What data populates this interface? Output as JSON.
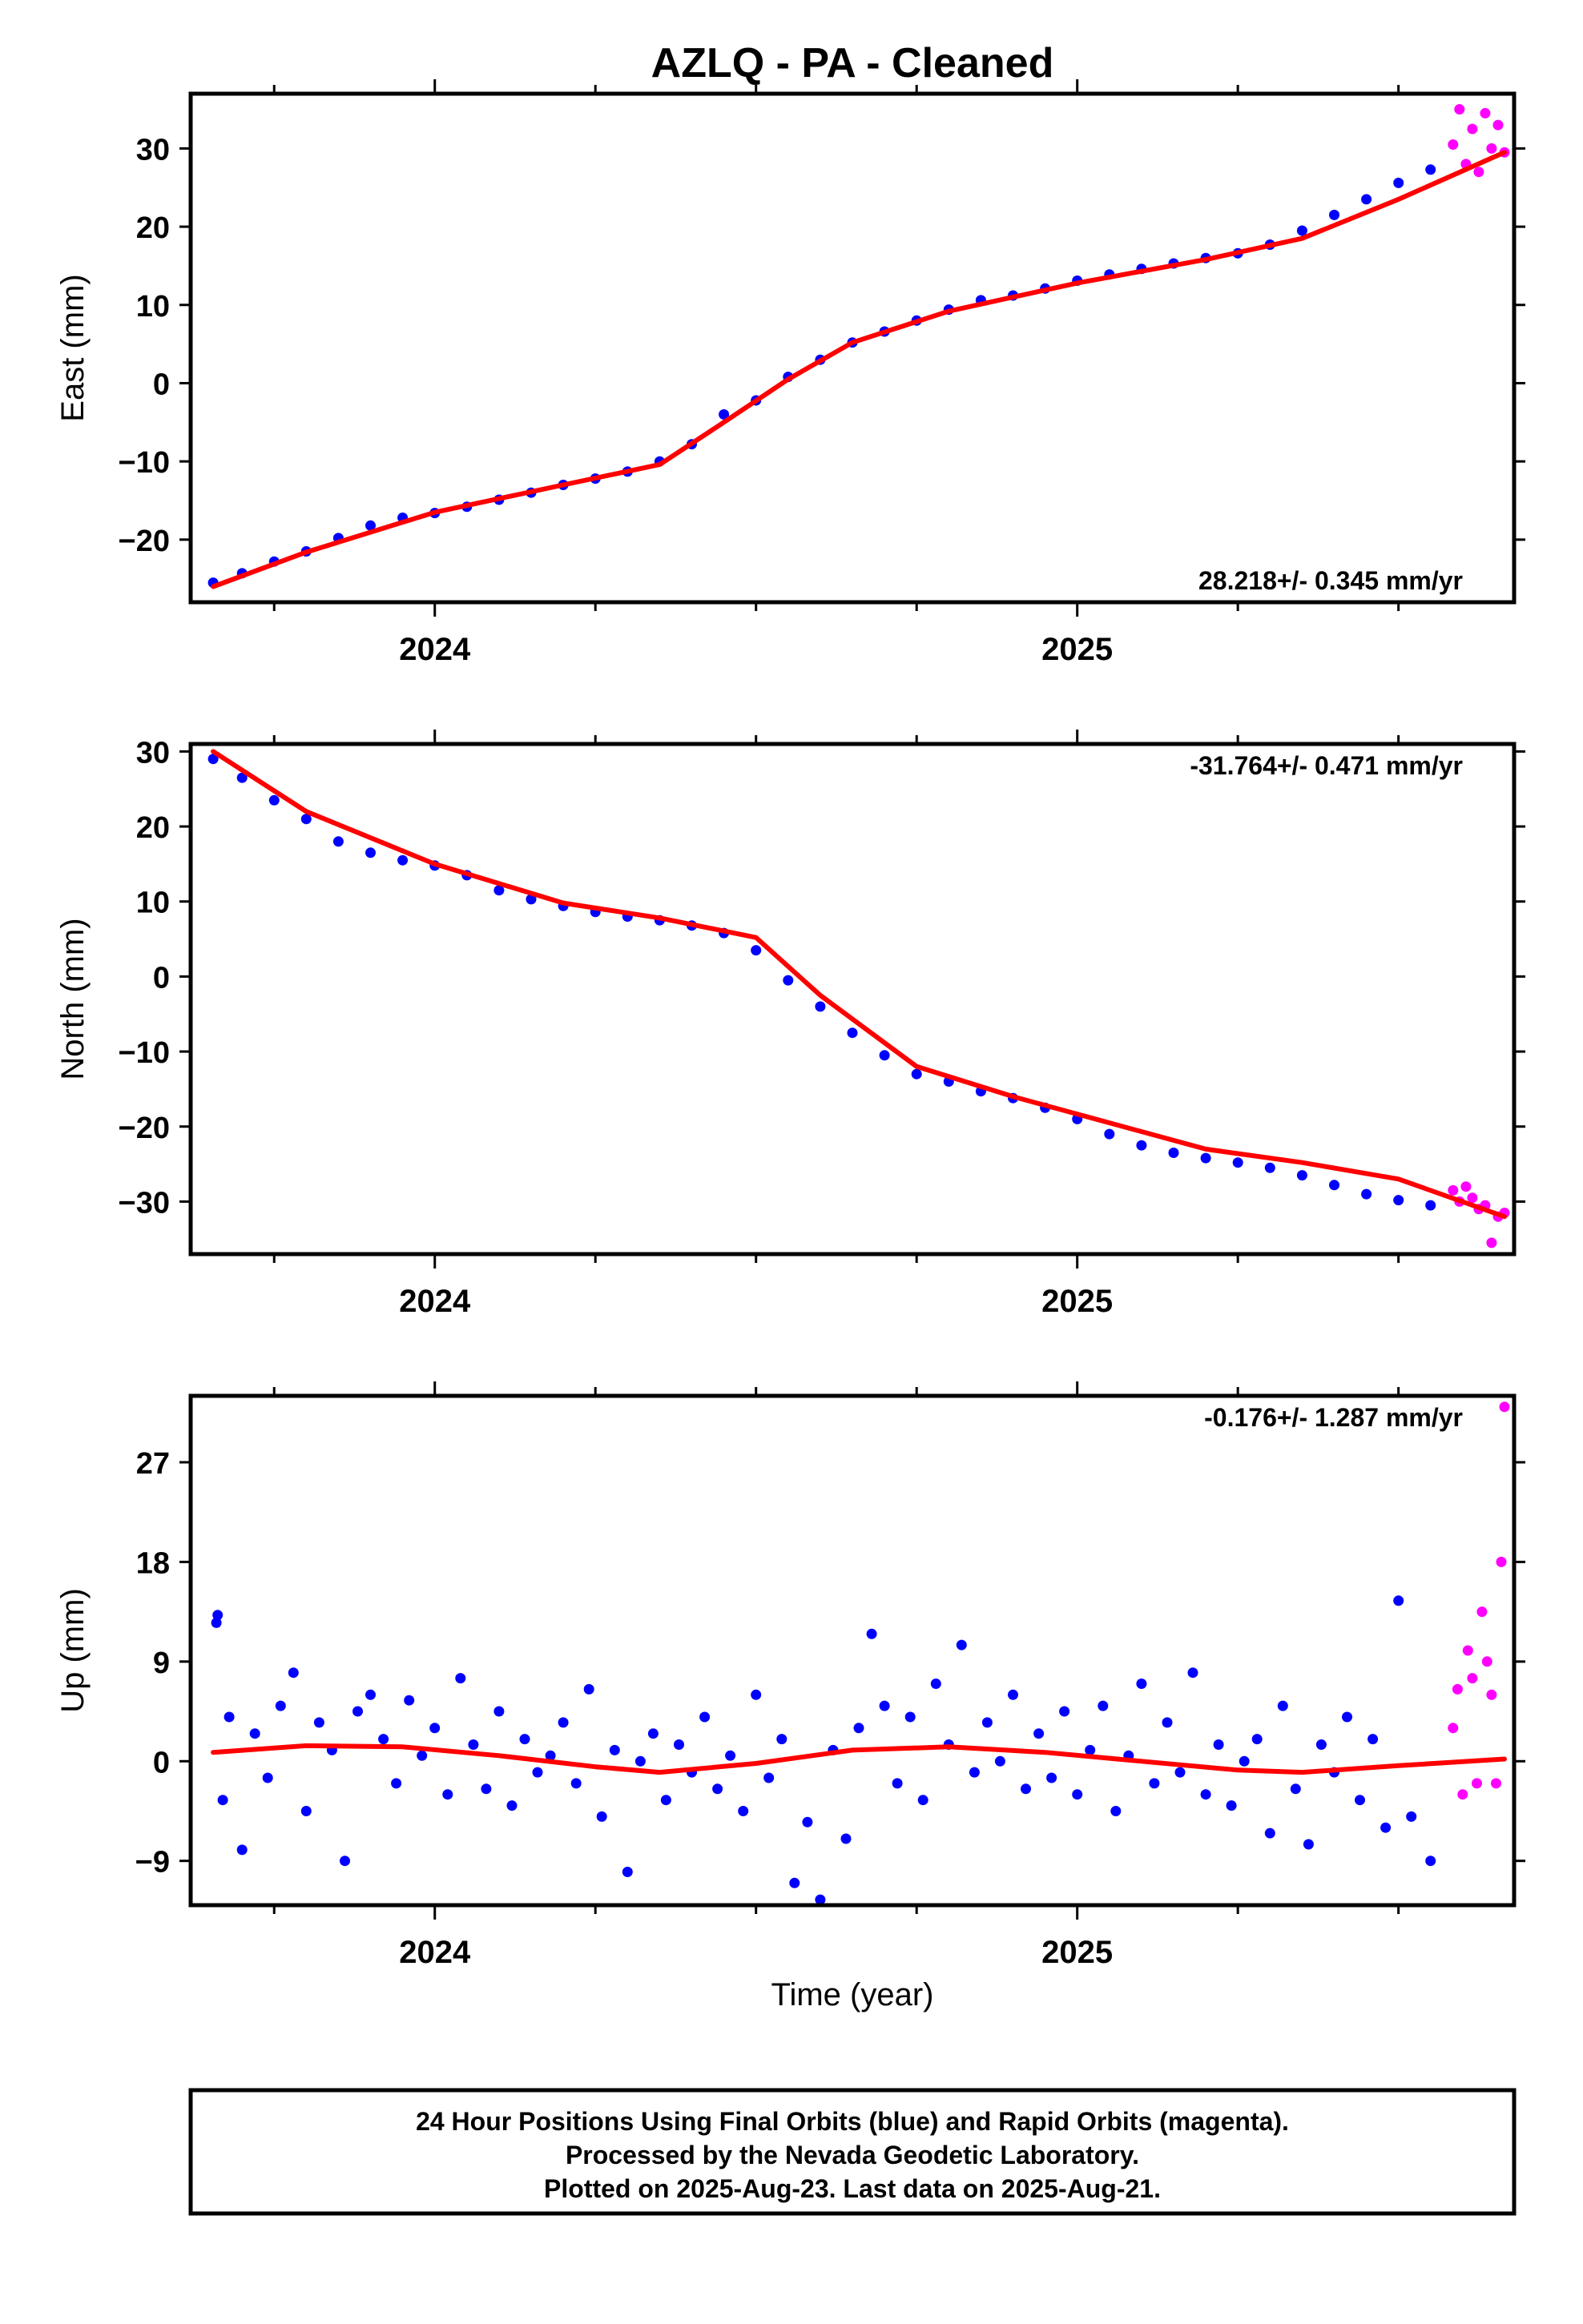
{
  "title": "AZLQ  - PA - Cleaned",
  "xlabel": "Time (year)",
  "footer": [
    "24 Hour Positions Using Final Orbits (blue) and Rapid Orbits (magenta).",
    "Processed by the Nevada Geodetic Laboratory.",
    "Plotted on 2025-Aug-23. Last data on 2025-Aug-21."
  ],
  "colors": {
    "final": "#0000ff",
    "rapid": "#ff00ff",
    "fit": "#ff0000",
    "frame": "#000000"
  },
  "chart_data": [
    {
      "type": "scatter",
      "component": "east",
      "ylabel": "East (mm)",
      "rate_label": "28.218+/- 0.345 mm/yr",
      "rate_position": "bottom-right",
      "xlim": [
        2023.62,
        2025.68
      ],
      "ylim": [
        -28,
        37
      ],
      "xticks": [
        2024,
        2025
      ],
      "yticks": [
        -20,
        -10,
        0,
        10,
        20,
        30
      ],
      "series": [
        {
          "kind": "final_orbits",
          "x": [
            2023.655,
            2023.7,
            2023.75,
            2023.8,
            2023.85,
            2023.9,
            2023.95,
            2024.0,
            2024.05,
            2024.1,
            2024.15,
            2024.2,
            2024.25,
            2024.3,
            2024.35,
            2024.4,
            2024.45,
            2024.5,
            2024.55,
            2024.6,
            2024.65,
            2024.7,
            2024.75,
            2024.8,
            2024.85,
            2024.9,
            2024.95,
            2025.0,
            2025.05,
            2025.1,
            2025.15,
            2025.2,
            2025.25,
            2025.3,
            2025.35,
            2025.4,
            2025.45,
            2025.5,
            2025.55
          ],
          "y": [
            -25.5,
            -24.3,
            -22.8,
            -21.5,
            -19.8,
            -18.2,
            -17.2,
            -16.6,
            -15.8,
            -14.9,
            -14.0,
            -13.0,
            -12.2,
            -11.3,
            -10.0,
            -7.8,
            -4.0,
            -2.2,
            0.8,
            3.0,
            5.2,
            6.6,
            8.0,
            9.4,
            10.6,
            11.2,
            12.1,
            13.1,
            13.9,
            14.6,
            15.3,
            16.0,
            16.6,
            17.7,
            19.5,
            21.5,
            23.5,
            25.6,
            27.3
          ]
        },
        {
          "kind": "rapid_orbits",
          "x": [
            2025.585,
            2025.595,
            2025.605,
            2025.615,
            2025.625,
            2025.635,
            2025.645,
            2025.655,
            2025.665
          ],
          "y": [
            30.5,
            35.0,
            28.0,
            32.5,
            27.0,
            34.5,
            30.0,
            33.0,
            29.5
          ]
        },
        {
          "kind": "fit",
          "x": [
            2023.655,
            2023.8,
            2024.0,
            2024.2,
            2024.35,
            2024.45,
            2024.55,
            2024.65,
            2024.8,
            2025.0,
            2025.2,
            2025.35,
            2025.5,
            2025.665
          ],
          "y": [
            -26.0,
            -21.6,
            -16.5,
            -13.0,
            -10.4,
            -5.0,
            0.5,
            5.2,
            9.2,
            12.8,
            15.8,
            18.5,
            23.5,
            29.5
          ]
        }
      ]
    },
    {
      "type": "scatter",
      "component": "north",
      "ylabel": "North (mm)",
      "rate_label": "-31.764+/- 0.471 mm/yr",
      "rate_position": "top-right",
      "xlim": [
        2023.62,
        2025.68
      ],
      "ylim": [
        -37,
        31
      ],
      "xticks": [
        2024,
        2025
      ],
      "yticks": [
        -30,
        -20,
        -10,
        0,
        10,
        20,
        30
      ],
      "series": [
        {
          "kind": "final_orbits",
          "x": [
            2023.655,
            2023.7,
            2023.75,
            2023.8,
            2023.85,
            2023.9,
            2023.95,
            2024.0,
            2024.05,
            2024.1,
            2024.15,
            2024.2,
            2024.25,
            2024.3,
            2024.35,
            2024.4,
            2024.45,
            2024.5,
            2024.55,
            2024.6,
            2024.65,
            2024.7,
            2024.75,
            2024.8,
            2024.85,
            2024.9,
            2024.95,
            2025.0,
            2025.05,
            2025.1,
            2025.15,
            2025.2,
            2025.25,
            2025.3,
            2025.35,
            2025.4,
            2025.45,
            2025.5,
            2025.55
          ],
          "y": [
            29.0,
            26.5,
            23.5,
            21.0,
            18.0,
            16.5,
            15.5,
            14.8,
            13.5,
            11.5,
            10.3,
            9.4,
            8.6,
            8.0,
            7.5,
            6.8,
            5.8,
            3.5,
            -0.5,
            -4.0,
            -7.5,
            -10.5,
            -13.0,
            -14.0,
            -15.3,
            -16.2,
            -17.5,
            -19.0,
            -21.0,
            -22.5,
            -23.5,
            -24.2,
            -24.8,
            -25.5,
            -26.5,
            -27.8,
            -29.0,
            -29.8,
            -30.5
          ]
        },
        {
          "kind": "rapid_orbits",
          "x": [
            2025.585,
            2025.595,
            2025.605,
            2025.615,
            2025.625,
            2025.635,
            2025.645,
            2025.655,
            2025.665
          ],
          "y": [
            -28.5,
            -30.0,
            -28.0,
            -29.5,
            -31.0,
            -30.5,
            -35.5,
            -32.0,
            -31.5
          ]
        },
        {
          "kind": "fit",
          "x": [
            2023.655,
            2023.8,
            2024.0,
            2024.2,
            2024.35,
            2024.5,
            2024.6,
            2024.75,
            2024.9,
            2025.05,
            2025.2,
            2025.35,
            2025.5,
            2025.665
          ],
          "y": [
            30.0,
            22.0,
            15.0,
            9.8,
            7.8,
            5.2,
            -2.5,
            -12.0,
            -16.0,
            -19.5,
            -23.0,
            -24.8,
            -27.0,
            -32.0
          ]
        }
      ]
    },
    {
      "type": "scatter",
      "component": "up",
      "ylabel": "Up (mm)",
      "rate_label": "-0.176+/- 1.287 mm/yr",
      "rate_position": "top-right",
      "xlim": [
        2023.62,
        2025.68
      ],
      "ylim": [
        -13,
        33
      ],
      "xticks": [
        2024,
        2025
      ],
      "yticks": [
        -9,
        0,
        9,
        18,
        27
      ],
      "series": [
        {
          "kind": "final_orbits",
          "x": [
            2023.66,
            2023.662,
            2023.67,
            2023.68,
            2023.7,
            2023.72,
            2023.74,
            2023.76,
            2023.78,
            2023.8,
            2023.82,
            2023.84,
            2023.86,
            2023.88,
            2023.9,
            2023.92,
            2023.94,
            2023.96,
            2023.98,
            2024.0,
            2024.02,
            2024.04,
            2024.06,
            2024.08,
            2024.1,
            2024.12,
            2024.14,
            2024.16,
            2024.18,
            2024.2,
            2024.22,
            2024.24,
            2024.26,
            2024.28,
            2024.3,
            2024.32,
            2024.34,
            2024.36,
            2024.38,
            2024.4,
            2024.42,
            2024.44,
            2024.46,
            2024.48,
            2024.5,
            2024.52,
            2024.54,
            2024.56,
            2024.58,
            2024.6,
            2024.62,
            2024.64,
            2024.66,
            2024.68,
            2024.7,
            2024.72,
            2024.74,
            2024.76,
            2024.78,
            2024.8,
            2024.82,
            2024.84,
            2024.86,
            2024.88,
            2024.9,
            2024.92,
            2024.94,
            2024.96,
            2024.98,
            2025.0,
            2025.02,
            2025.04,
            2025.06,
            2025.08,
            2025.1,
            2025.12,
            2025.14,
            2025.16,
            2025.18,
            2025.2,
            2025.22,
            2025.24,
            2025.26,
            2025.28,
            2025.3,
            2025.32,
            2025.34,
            2025.36,
            2025.38,
            2025.4,
            2025.42,
            2025.44,
            2025.46,
            2025.48,
            2025.5,
            2025.52,
            2025.55
          ],
          "y": [
            12.5,
            13.2,
            -3.5,
            4.0,
            -8.0,
            2.5,
            -1.5,
            5.0,
            8.0,
            -4.5,
            3.5,
            1.0,
            -9.0,
            4.5,
            6.0,
            2.0,
            -2.0,
            5.5,
            0.5,
            3.0,
            -3.0,
            7.5,
            1.5,
            -2.5,
            4.5,
            -4.0,
            2.0,
            -1.0,
            0.5,
            3.5,
            -2.0,
            6.5,
            -5.0,
            1.0,
            -10.0,
            0.0,
            2.5,
            -3.5,
            1.5,
            -1.0,
            4.0,
            -2.5,
            0.5,
            -4.5,
            6.0,
            -1.5,
            2.0,
            -11.0,
            -5.5,
            -12.5,
            1.0,
            -7.0,
            3.0,
            11.5,
            5.0,
            -2.0,
            4.0,
            -3.5,
            7.0,
            1.5,
            10.5,
            -1.0,
            3.5,
            0.0,
            6.0,
            -2.5,
            2.5,
            -1.5,
            4.5,
            -3.0,
            1.0,
            5.0,
            -4.5,
            0.5,
            7.0,
            -2.0,
            3.5,
            -1.0,
            8.0,
            -3.0,
            1.5,
            -4.0,
            0.0,
            2.0,
            -6.5,
            5.0,
            -2.5,
            -7.5,
            1.5,
            -1.0,
            4.0,
            -3.5,
            2.0,
            -6.0,
            14.5,
            -5.0,
            -9.0
          ]
        },
        {
          "kind": "rapid_orbits",
          "x": [
            2025.585,
            2025.592,
            2025.6,
            2025.608,
            2025.615,
            2025.622,
            2025.63,
            2025.638,
            2025.645,
            2025.652,
            2025.66,
            2025.665
          ],
          "y": [
            3.0,
            6.5,
            -3.0,
            10.0,
            7.5,
            -2.0,
            13.5,
            9.0,
            6.0,
            -2.0,
            18.0,
            32.0
          ]
        },
        {
          "kind": "fit",
          "x": [
            2023.655,
            2023.8,
            2023.95,
            2024.1,
            2024.25,
            2024.35,
            2024.5,
            2024.65,
            2024.8,
            2024.95,
            2025.1,
            2025.25,
            2025.35,
            2025.5,
            2025.665
          ],
          "y": [
            0.8,
            1.4,
            1.3,
            0.5,
            -0.5,
            -1.0,
            -0.2,
            1.0,
            1.3,
            0.8,
            0.0,
            -0.8,
            -1.0,
            -0.4,
            0.2
          ]
        }
      ]
    }
  ]
}
